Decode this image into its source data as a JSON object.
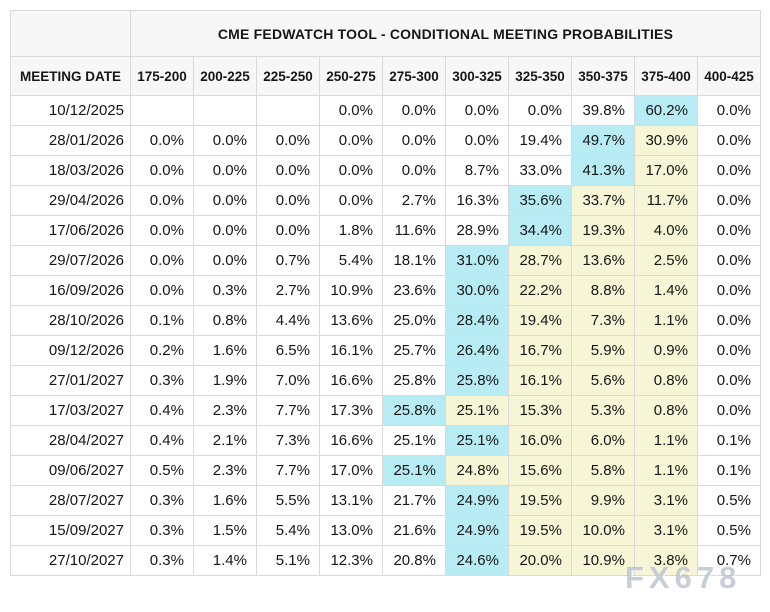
{
  "colors": {
    "max_highlight": "#b7ecf4",
    "tail_highlight": "#f6f6d7",
    "header_bg": "#f7f7f7",
    "border": "#d9d9d9"
  },
  "watermark": {
    "text": "FX678"
  },
  "chart_data": {
    "type": "table",
    "title": "CME FEDWATCH TOOL - CONDITIONAL MEETING PROBABILITIES",
    "columns": [
      "MEETING DATE",
      "175-200",
      "200-225",
      "225-250",
      "250-275",
      "275-300",
      "300-325",
      "325-350",
      "350-375",
      "375-400",
      "400-425"
    ],
    "highlight_legend": {
      "max": "highest probability in row (cyan)",
      "tail": "probabilities to the right of peak (pale yellow)"
    },
    "rows": [
      {
        "date": "10/12/2025",
        "values": [
          "",
          "",
          "",
          "0.0%",
          "0.0%",
          "0.0%",
          "0.0%",
          "39.8%",
          "60.2%",
          "0.0%"
        ],
        "highlights": [
          "",
          "",
          "",
          "",
          "",
          "",
          "",
          "",
          "max",
          ""
        ]
      },
      {
        "date": "28/01/2026",
        "values": [
          "0.0%",
          "0.0%",
          "0.0%",
          "0.0%",
          "0.0%",
          "0.0%",
          "19.4%",
          "49.7%",
          "30.9%",
          "0.0%"
        ],
        "highlights": [
          "",
          "",
          "",
          "",
          "",
          "",
          "",
          "max",
          "tail",
          ""
        ]
      },
      {
        "date": "18/03/2026",
        "values": [
          "0.0%",
          "0.0%",
          "0.0%",
          "0.0%",
          "0.0%",
          "8.7%",
          "33.0%",
          "41.3%",
          "17.0%",
          "0.0%"
        ],
        "highlights": [
          "",
          "",
          "",
          "",
          "",
          "",
          "",
          "max",
          "tail",
          ""
        ]
      },
      {
        "date": "29/04/2026",
        "values": [
          "0.0%",
          "0.0%",
          "0.0%",
          "0.0%",
          "2.7%",
          "16.3%",
          "35.6%",
          "33.7%",
          "11.7%",
          "0.0%"
        ],
        "highlights": [
          "",
          "",
          "",
          "",
          "",
          "",
          "max",
          "tail",
          "tail",
          ""
        ]
      },
      {
        "date": "17/06/2026",
        "values": [
          "0.0%",
          "0.0%",
          "0.0%",
          "1.8%",
          "11.6%",
          "28.9%",
          "34.4%",
          "19.3%",
          "4.0%",
          "0.0%"
        ],
        "highlights": [
          "",
          "",
          "",
          "",
          "",
          "",
          "max",
          "tail",
          "tail",
          ""
        ]
      },
      {
        "date": "29/07/2026",
        "values": [
          "0.0%",
          "0.0%",
          "0.7%",
          "5.4%",
          "18.1%",
          "31.0%",
          "28.7%",
          "13.6%",
          "2.5%",
          "0.0%"
        ],
        "highlights": [
          "",
          "",
          "",
          "",
          "",
          "max",
          "tail",
          "tail",
          "tail",
          ""
        ]
      },
      {
        "date": "16/09/2026",
        "values": [
          "0.0%",
          "0.3%",
          "2.7%",
          "10.9%",
          "23.6%",
          "30.0%",
          "22.2%",
          "8.8%",
          "1.4%",
          "0.0%"
        ],
        "highlights": [
          "",
          "",
          "",
          "",
          "",
          "max",
          "tail",
          "tail",
          "tail",
          ""
        ]
      },
      {
        "date": "28/10/2026",
        "values": [
          "0.1%",
          "0.8%",
          "4.4%",
          "13.6%",
          "25.0%",
          "28.4%",
          "19.4%",
          "7.3%",
          "1.1%",
          "0.0%"
        ],
        "highlights": [
          "",
          "",
          "",
          "",
          "",
          "max",
          "tail",
          "tail",
          "tail",
          ""
        ]
      },
      {
        "date": "09/12/2026",
        "values": [
          "0.2%",
          "1.6%",
          "6.5%",
          "16.1%",
          "25.7%",
          "26.4%",
          "16.7%",
          "5.9%",
          "0.9%",
          "0.0%"
        ],
        "highlights": [
          "",
          "",
          "",
          "",
          "",
          "max",
          "tail",
          "tail",
          "tail",
          ""
        ]
      },
      {
        "date": "27/01/2027",
        "values": [
          "0.3%",
          "1.9%",
          "7.0%",
          "16.6%",
          "25.8%",
          "25.8%",
          "16.1%",
          "5.6%",
          "0.8%",
          "0.0%"
        ],
        "highlights": [
          "",
          "",
          "",
          "",
          "",
          "max",
          "tail",
          "tail",
          "tail",
          ""
        ]
      },
      {
        "date": "17/03/2027",
        "values": [
          "0.4%",
          "2.3%",
          "7.7%",
          "17.3%",
          "25.8%",
          "25.1%",
          "15.3%",
          "5.3%",
          "0.8%",
          "0.0%"
        ],
        "highlights": [
          "",
          "",
          "",
          "",
          "max",
          "tail",
          "tail",
          "tail",
          "tail",
          ""
        ]
      },
      {
        "date": "28/04/2027",
        "values": [
          "0.4%",
          "2.1%",
          "7.3%",
          "16.6%",
          "25.1%",
          "25.1%",
          "16.0%",
          "6.0%",
          "1.1%",
          "0.1%"
        ],
        "highlights": [
          "",
          "",
          "",
          "",
          "",
          "max",
          "tail",
          "tail",
          "tail",
          ""
        ]
      },
      {
        "date": "09/06/2027",
        "values": [
          "0.5%",
          "2.3%",
          "7.7%",
          "17.0%",
          "25.1%",
          "24.8%",
          "15.6%",
          "5.8%",
          "1.1%",
          "0.1%"
        ],
        "highlights": [
          "",
          "",
          "",
          "",
          "max",
          "tail",
          "tail",
          "tail",
          "tail",
          ""
        ]
      },
      {
        "date": "28/07/2027",
        "values": [
          "0.3%",
          "1.6%",
          "5.5%",
          "13.1%",
          "21.7%",
          "24.9%",
          "19.5%",
          "9.9%",
          "3.1%",
          "0.5%"
        ],
        "highlights": [
          "",
          "",
          "",
          "",
          "",
          "max",
          "tail",
          "tail",
          "tail",
          ""
        ]
      },
      {
        "date": "15/09/2027",
        "values": [
          "0.3%",
          "1.5%",
          "5.4%",
          "13.0%",
          "21.6%",
          "24.9%",
          "19.5%",
          "10.0%",
          "3.1%",
          "0.5%"
        ],
        "highlights": [
          "",
          "",
          "",
          "",
          "",
          "max",
          "tail",
          "tail",
          "tail",
          ""
        ]
      },
      {
        "date": "27/10/2027",
        "values": [
          "0.3%",
          "1.4%",
          "5.1%",
          "12.3%",
          "20.8%",
          "24.6%",
          "20.0%",
          "10.9%",
          "3.8%",
          "0.7%"
        ],
        "highlights": [
          "",
          "",
          "",
          "",
          "",
          "max",
          "tail",
          "tail",
          "tail",
          ""
        ]
      }
    ]
  }
}
